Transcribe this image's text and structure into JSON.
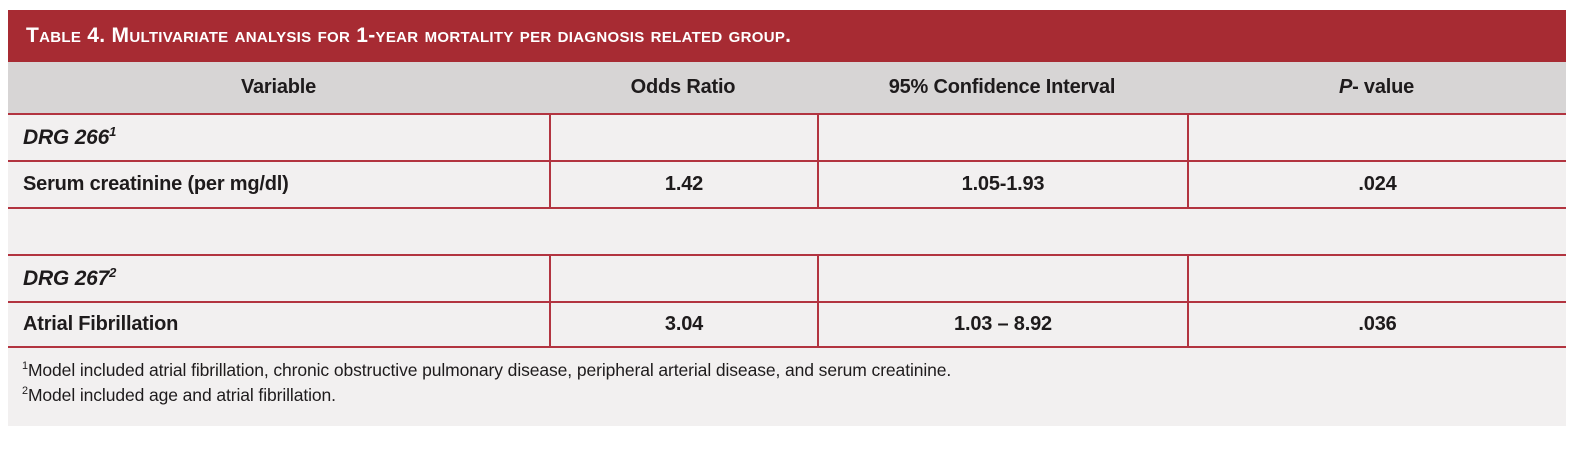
{
  "colors": {
    "accent_red": "#a72b33",
    "grid_line_red": "#b23440",
    "header_gray": "#d7d5d5",
    "row_background": "#f2f0f0"
  },
  "table": {
    "title": "Table 4. Multivariate analysis for 1-year mortality per diagnosis related group.",
    "headers": {
      "variable": "Variable",
      "odds_ratio": "Odds Ratio",
      "confidence_interval": "95% Confidence Interval",
      "p_value_italic": "P",
      "p_value_rest": "- value"
    },
    "rows": [
      {
        "type": "group",
        "variable": "DRG 266",
        "sup": "1"
      },
      {
        "type": "data",
        "variable": "Serum creatinine (per mg/dl)",
        "odds_ratio": "1.42",
        "confidence_interval": "1.05-1.93",
        "p_value": ".024"
      },
      {
        "type": "spacer"
      },
      {
        "type": "group",
        "variable": "DRG 267",
        "sup": "2"
      },
      {
        "type": "data",
        "variable": "Atrial Fibrillation",
        "odds_ratio": "3.04",
        "confidence_interval": "1.03 – 8.92",
        "p_value": ".036"
      }
    ],
    "footnotes": [
      {
        "sup": "1",
        "text": "Model included atrial fibrillation, chronic obstructive pulmonary disease, peripheral arterial disease, and serum creatinine."
      },
      {
        "sup": "2",
        "text": "Model included age and atrial fibrillation."
      }
    ]
  }
}
